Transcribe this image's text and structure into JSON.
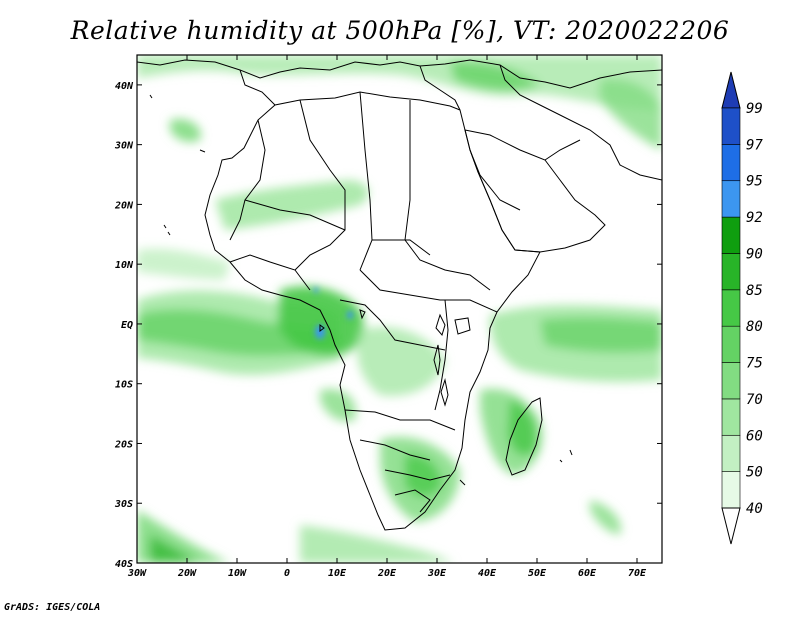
{
  "title": "Relative humidity at 500hPa [%], VT: 2020022206",
  "credit": "GrADS: IGES/COLA",
  "map": {
    "lon_range": [
      -30,
      75
    ],
    "lat_range": [
      -40,
      45
    ],
    "lon_ticks": [
      {
        "value": -30,
        "label": "30W"
      },
      {
        "value": -20,
        "label": "20W"
      },
      {
        "value": -10,
        "label": "10W"
      },
      {
        "value": 0,
        "label": "0"
      },
      {
        "value": 10,
        "label": "10E"
      },
      {
        "value": 20,
        "label": "20E"
      },
      {
        "value": 30,
        "label": "30E"
      },
      {
        "value": 40,
        "label": "40E"
      },
      {
        "value": 50,
        "label": "50E"
      },
      {
        "value": 60,
        "label": "60E"
      },
      {
        "value": 70,
        "label": "70E"
      }
    ],
    "lat_ticks": [
      {
        "value": 40,
        "label": "40N"
      },
      {
        "value": 30,
        "label": "30N"
      },
      {
        "value": 20,
        "label": "20N"
      },
      {
        "value": 10,
        "label": "10N"
      },
      {
        "value": 0,
        "label": "EQ"
      },
      {
        "value": -10,
        "label": "10S"
      },
      {
        "value": -20,
        "label": "20S"
      },
      {
        "value": -30,
        "label": "30S"
      },
      {
        "value": -40,
        "label": "40S"
      }
    ]
  },
  "colorbar": {
    "levels": [
      "40",
      "50",
      "60",
      "70",
      "75",
      "80",
      "85",
      "90",
      "92",
      "95",
      "97",
      "99"
    ],
    "colors": [
      "#ffffff",
      "#e6fae6",
      "#c3f0c3",
      "#a0e6a0",
      "#82dc82",
      "#64d264",
      "#46c846",
      "#28b428",
      "#0f9e0f",
      "#3c96f0",
      "#1e6ee6",
      "#1e50c8",
      "#1e3cb4"
    ]
  },
  "chart_data": {
    "type": "heatmap",
    "title": "Relative humidity at 500hPa [%], VT: 2020022206",
    "variable": "Relative humidity at 500hPa",
    "units": "%",
    "valid_time": "2020022206",
    "x_range": [
      -30,
      75
    ],
    "y_range": [
      -40,
      45
    ],
    "contour_levels": [
      40,
      50,
      60,
      70,
      75,
      80,
      85,
      90,
      92,
      95,
      97,
      99
    ]
  }
}
